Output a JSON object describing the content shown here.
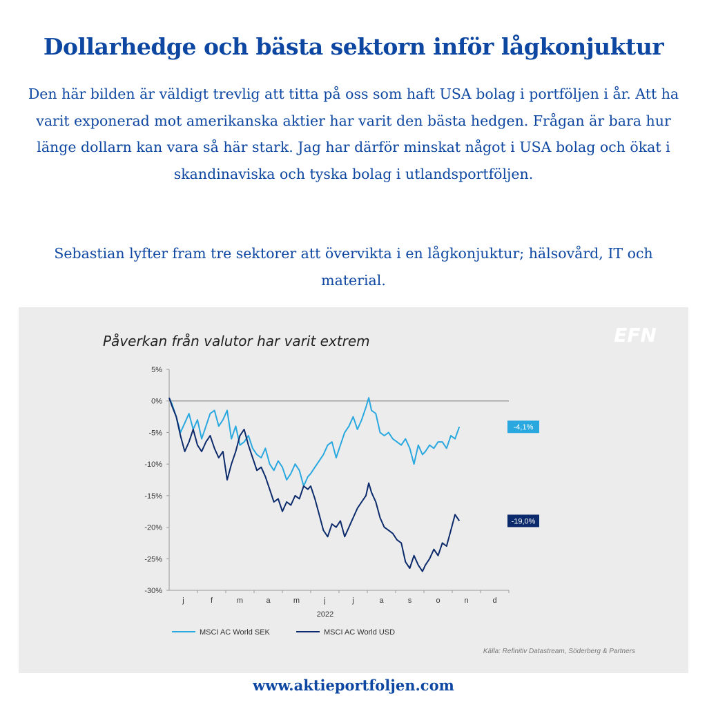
{
  "header": {
    "title": "Dollarhedge och bästa sektorn inför lågkonjuktur",
    "paragraph1": "Den här bilden är väldigt trevlig att titta på oss som haft USA bolag i portföljen i år. Att ha varit exponerad mot amerikanska aktier har varit den bästa hedgen. Frågan är bara hur länge dollarn kan vara så här stark. Jag har därför minskat något i USA bolag och ökat i skandinaviska och tyska bolag i utlandsportföljen.",
    "paragraph2": "Sebastian lyfter fram tre sektorer att övervikta i en lågkonjuktur; hälsovård, IT och material."
  },
  "logo_text": "EFN",
  "footer": {
    "url": "www.aktieportfoljen.com"
  },
  "colors": {
    "accent": "#0d47a1",
    "series_sek": "#29a8e0",
    "series_usd": "#0b2a6b",
    "panel": "#ececec"
  },
  "chart_data": {
    "type": "line",
    "title": "Påverkan från valutor har varit extrem",
    "xlabel": "2022",
    "x_ticks": [
      "j",
      "f",
      "m",
      "a",
      "m",
      "j",
      "j",
      "a",
      "s",
      "o",
      "n",
      "d"
    ],
    "y_ticks": [
      "5%",
      "0%",
      "-5%",
      "-10%",
      "-15%",
      "-20%",
      "-25%",
      "-30%"
    ],
    "ylim": [
      -30,
      5
    ],
    "y_tick_values": [
      5,
      0,
      -5,
      -10,
      -15,
      -20,
      -25,
      -30
    ],
    "x_range": [
      0,
      12
    ],
    "reference_line": 0,
    "grid": false,
    "legend_position": "bottom-left",
    "source": "Källa: Refinitiv Datastream, Söderberg & Partners",
    "series": [
      {
        "name": "MSCI AC World SEK",
        "end_label": "-4,1%",
        "color": "#29a8e0",
        "x": [
          0,
          0.1,
          0.25,
          0.4,
          0.55,
          0.7,
          0.85,
          1.0,
          1.15,
          1.3,
          1.45,
          1.6,
          1.75,
          1.9,
          2.05,
          2.2,
          2.35,
          2.5,
          2.65,
          2.8,
          2.95,
          3.1,
          3.25,
          3.4,
          3.55,
          3.7,
          3.85,
          4.0,
          4.15,
          4.3,
          4.45,
          4.6,
          4.75,
          4.9,
          5.0,
          5.15,
          5.3,
          5.45,
          5.6,
          5.75,
          5.9,
          6.05,
          6.2,
          6.35,
          6.5,
          6.65,
          6.8,
          6.95,
          7.05,
          7.15,
          7.3,
          7.45,
          7.6,
          7.75,
          7.9,
          8.05,
          8.2,
          8.35,
          8.5,
          8.65,
          8.8,
          8.95,
          9.05,
          9.2,
          9.35,
          9.5,
          9.65,
          9.8,
          9.95,
          10.1,
          10.25
        ],
        "values": [
          0.5,
          -0.5,
          -2.5,
          -5.0,
          -3.5,
          -2.0,
          -4.5,
          -3.0,
          -6.0,
          -4.0,
          -2.0,
          -1.5,
          -4.0,
          -3.0,
          -1.5,
          -6.0,
          -4.0,
          -7.0,
          -6.5,
          -5.5,
          -7.5,
          -8.5,
          -9.0,
          -7.5,
          -10.0,
          -11.0,
          -9.5,
          -10.5,
          -12.5,
          -11.5,
          -10.0,
          -11.0,
          -13.5,
          -12.0,
          -11.5,
          -10.5,
          -9.5,
          -8.5,
          -7.0,
          -6.5,
          -9.0,
          -7.0,
          -5.0,
          -4.0,
          -2.5,
          -4.5,
          -3.0,
          -1.0,
          0.5,
          -1.5,
          -2.0,
          -5.0,
          -5.5,
          -5.0,
          -6.0,
          -6.5,
          -7.0,
          -6.0,
          -7.5,
          -10.0,
          -7.0,
          -8.5,
          -8.0,
          -7.0,
          -7.5,
          -6.5,
          -6.5,
          -7.5,
          -5.5,
          -6.0,
          -4.1
        ]
      },
      {
        "name": "MSCI AC World USD",
        "end_label": "-19,0%",
        "color": "#0b2a6b",
        "x": [
          0,
          0.1,
          0.25,
          0.4,
          0.55,
          0.7,
          0.85,
          1.0,
          1.15,
          1.3,
          1.45,
          1.6,
          1.75,
          1.9,
          2.05,
          2.2,
          2.35,
          2.5,
          2.65,
          2.8,
          2.95,
          3.1,
          3.25,
          3.4,
          3.55,
          3.7,
          3.85,
          4.0,
          4.15,
          4.3,
          4.45,
          4.6,
          4.75,
          4.9,
          5.0,
          5.15,
          5.3,
          5.45,
          5.6,
          5.75,
          5.9,
          6.05,
          6.2,
          6.35,
          6.5,
          6.65,
          6.8,
          6.95,
          7.05,
          7.15,
          7.3,
          7.45,
          7.6,
          7.75,
          7.9,
          8.05,
          8.2,
          8.35,
          8.5,
          8.65,
          8.8,
          8.95,
          9.05,
          9.2,
          9.35,
          9.5,
          9.65,
          9.8,
          9.95,
          10.1,
          10.25
        ],
        "values": [
          0.5,
          -0.8,
          -2.5,
          -5.5,
          -8.0,
          -6.5,
          -4.5,
          -7.0,
          -8.0,
          -6.5,
          -5.5,
          -7.5,
          -9.0,
          -8.0,
          -12.5,
          -10.0,
          -8.0,
          -5.5,
          -4.5,
          -7.0,
          -9.0,
          -11.0,
          -10.5,
          -12.0,
          -14.0,
          -16.0,
          -15.5,
          -17.5,
          -16.0,
          -16.5,
          -15.0,
          -15.5,
          -13.5,
          -14.0,
          -13.5,
          -15.5,
          -18.0,
          -20.5,
          -21.5,
          -19.5,
          -20.0,
          -19.0,
          -21.5,
          -20.0,
          -18.5,
          -17.0,
          -16.0,
          -15.0,
          -13.0,
          -14.5,
          -16.0,
          -18.5,
          -20.0,
          -20.5,
          -21.0,
          -22.0,
          -22.5,
          -25.5,
          -26.5,
          -24.5,
          -26.0,
          -27.0,
          -26.0,
          -25.0,
          -23.5,
          -24.5,
          -22.5,
          -23.0,
          -20.5,
          -18.0,
          -19.0
        ]
      }
    ]
  }
}
